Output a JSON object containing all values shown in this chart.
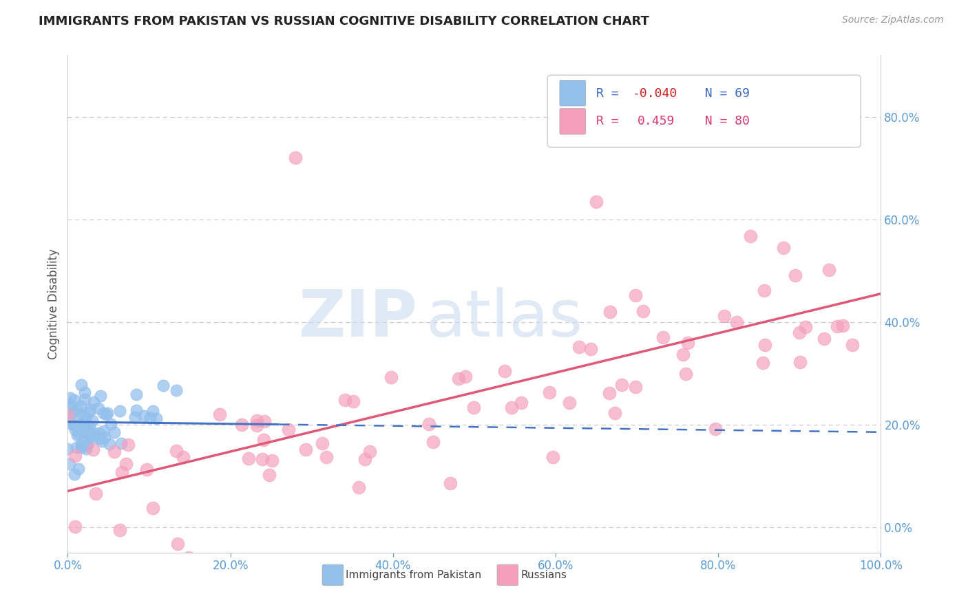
{
  "title": "IMMIGRANTS FROM PAKISTAN VS RUSSIAN COGNITIVE DISABILITY CORRELATION CHART",
  "source_text": "Source: ZipAtlas.com",
  "ylabel": "Cognitive Disability",
  "xlim": [
    0.0,
    1.0
  ],
  "ylim": [
    -0.05,
    0.92
  ],
  "yticks": [
    0.0,
    0.2,
    0.4,
    0.6,
    0.8
  ],
  "xticks": [
    0.0,
    0.2,
    0.4,
    0.6,
    0.8,
    1.0
  ],
  "series1_label": "Immigrants from Pakistan",
  "series1_color": "#92bfec",
  "series1_R": -0.04,
  "series1_N": 69,
  "series2_label": "Russians",
  "series2_color": "#f4a0bc",
  "series2_R": 0.459,
  "series2_N": 80,
  "background_color": "#ffffff",
  "grid_color": "#c8c8c8",
  "watermark_zip": "ZIP",
  "watermark_atlas": "atlas",
  "title_color": "#222222",
  "axis_label_color": "#5b9bd5",
  "legend_R_color1": "#3a6abf",
  "legend_R_color2": "#d63870",
  "trend_line1_color": "#4472c4",
  "trend_line2_color": "#e05878",
  "trend_line1_solid_end": 0.26,
  "trend_line1_y_start": 0.205,
  "trend_line1_y_end_solid": 0.2,
  "trend_line1_y_end_dashed": 0.185,
  "trend_line2_y_start": 0.07,
  "trend_line2_y_end": 0.455
}
